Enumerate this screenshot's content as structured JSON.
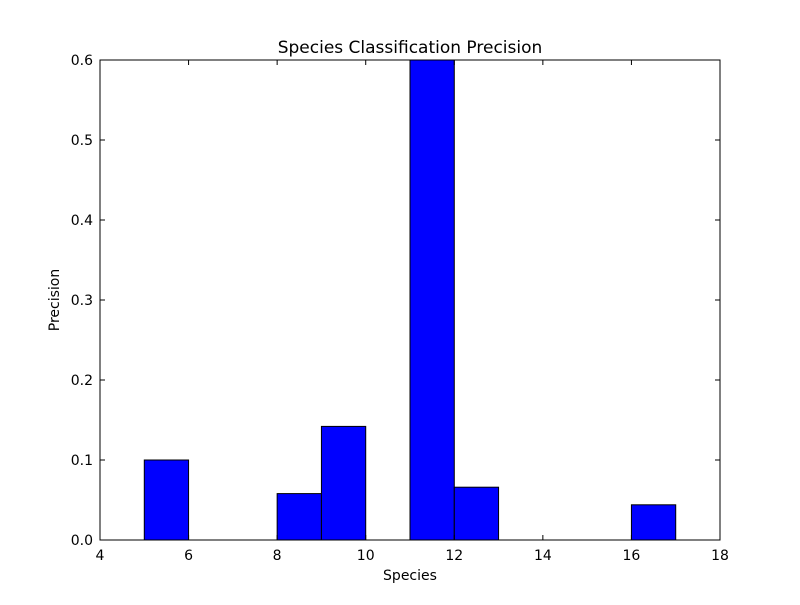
{
  "chart_data": {
    "type": "bar",
    "title": "Species Classification Precision",
    "xlabel": "Species",
    "ylabel": "Precision",
    "xlim": [
      4,
      18
    ],
    "ylim": [
      0,
      0.6
    ],
    "xticks": [
      4,
      6,
      8,
      10,
      12,
      14,
      16,
      18
    ],
    "yticks": [
      0.0,
      0.1,
      0.2,
      0.3,
      0.4,
      0.5,
      0.6
    ],
    "xtick_labels": [
      "4",
      "6",
      "8",
      "10",
      "12",
      "14",
      "16",
      "18"
    ],
    "ytick_labels": [
      "0.0",
      "0.1",
      "0.2",
      "0.3",
      "0.4",
      "0.5",
      "0.6"
    ],
    "bars": [
      {
        "x_start": 5,
        "x_end": 6,
        "value": 0.1
      },
      {
        "x_start": 8,
        "x_end": 9,
        "value": 0.058
      },
      {
        "x_start": 9,
        "x_end": 10,
        "value": 0.142
      },
      {
        "x_start": 11,
        "x_end": 12,
        "value": 0.6
      },
      {
        "x_start": 12,
        "x_end": 13,
        "value": 0.066
      },
      {
        "x_start": 16,
        "x_end": 17,
        "value": 0.044
      }
    ],
    "grid": false,
    "bar_color": "#0000ff",
    "edge_color": "#000000"
  }
}
